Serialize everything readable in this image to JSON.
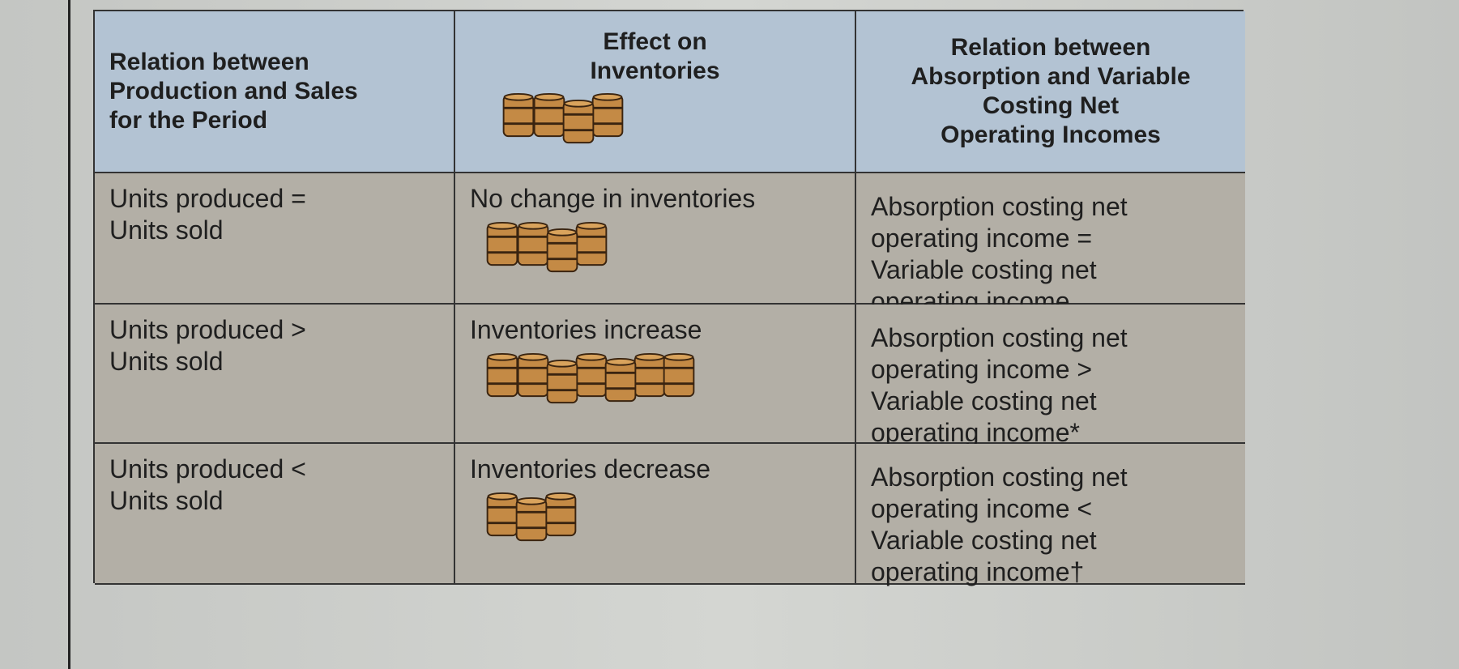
{
  "table": {
    "header": [
      "Relation between\nProduction and Sales\nfor the Period",
      "Effect on\nInventories",
      "Relation between\nAbsorption and Variable\nCosting Net\nOperating Incomes"
    ],
    "rows": [
      [
        "Units produced =\nUnits sold",
        "No change in inventories",
        "Absorption costing net\noperating income =\nVariable costing net\noperating income"
      ],
      [
        "Units produced >\nUnits sold",
        "Inventories increase",
        "Absorption costing net\noperating income >\nVariable costing net\noperating income*"
      ],
      [
        "Units produced <\nUnits sold",
        "Inventories decrease",
        "Absorption costing net\noperating income <\nVariable costing net\noperating income†"
      ]
    ]
  }
}
